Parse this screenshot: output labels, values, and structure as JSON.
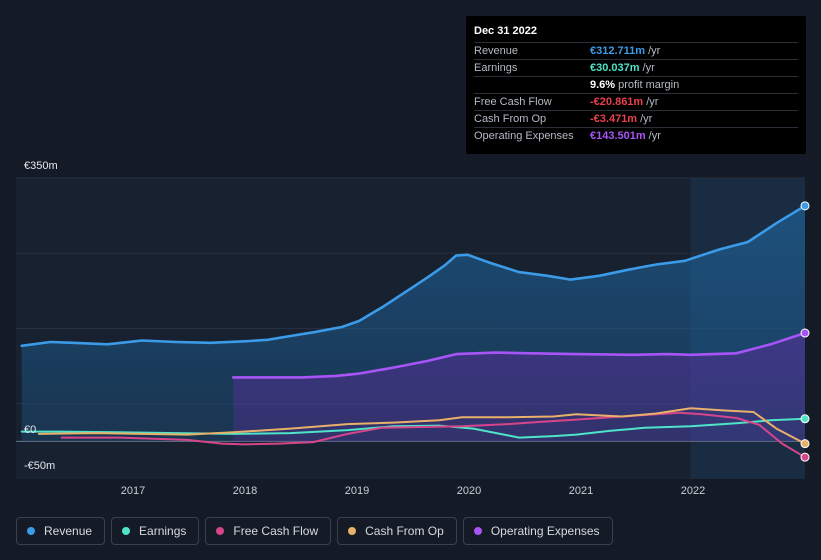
{
  "tooltip": {
    "date": "Dec 31 2022",
    "rows": [
      {
        "label": "Revenue",
        "value": "€312.711m",
        "unit": "/yr",
        "color": "#3b9be8"
      },
      {
        "label": "Earnings",
        "value": "€30.037m",
        "unit": "/yr",
        "color": "#4fe3c8"
      },
      {
        "label": "",
        "value": "9.6%",
        "unit": "profit margin",
        "color": "#ffffff"
      },
      {
        "label": "Free Cash Flow",
        "value": "-€20.861m",
        "unit": "/yr",
        "color": "#e8414b"
      },
      {
        "label": "Cash From Op",
        "value": "-€3.471m",
        "unit": "/yr",
        "color": "#e8414b"
      },
      {
        "label": "Operating Expenses",
        "value": "€143.501m",
        "unit": "/yr",
        "color": "#a855f7"
      }
    ]
  },
  "axis": {
    "y_top_label": "€350m",
    "y_zero_label": "€0",
    "y_bottom_label": "-€50m",
    "x_ticks": [
      "2017",
      "2018",
      "2019",
      "2020",
      "2021",
      "2022"
    ]
  },
  "legend": [
    {
      "label": "Revenue",
      "color": "#3b9be8"
    },
    {
      "label": "Earnings",
      "color": "#4fe3c8"
    },
    {
      "label": "Free Cash Flow",
      "color": "#d6458a"
    },
    {
      "label": "Cash From Op",
      "color": "#e8b06a"
    },
    {
      "label": "Operating Expenses",
      "color": "#a855f7"
    }
  ],
  "chart_data": {
    "type": "line",
    "title": "",
    "xlabel": "",
    "ylabel": "",
    "ylim": [
      -50,
      350
    ],
    "xlim": [
      2016.1,
      2023.0
    ],
    "highlight_from": 2022.0,
    "series": [
      {
        "name": "Revenue",
        "color": "#3b9be8",
        "fill": true,
        "x": [
          2016.15,
          2016.4,
          2016.6,
          2016.9,
          2017.2,
          2017.5,
          2017.8,
          2018.1,
          2018.3,
          2018.5,
          2018.7,
          2018.95,
          2019.1,
          2019.3,
          2019.5,
          2019.7,
          2019.85,
          2019.95,
          2020.05,
          2020.25,
          2020.5,
          2020.75,
          2020.95,
          2021.2,
          2021.45,
          2021.7,
          2021.95,
          2022.25,
          2022.5,
          2022.75,
          2023.0
        ],
        "y": [
          127,
          132,
          131,
          129,
          134,
          132,
          131,
          133,
          135,
          140,
          145,
          152,
          160,
          178,
          198,
          218,
          234,
          247,
          248,
          237,
          225,
          220,
          215,
          220,
          228,
          235,
          240,
          255,
          265,
          290,
          313
        ]
      },
      {
        "name": "Operating Expenses",
        "color": "#a855f7",
        "fill": true,
        "x": [
          2018.0,
          2018.3,
          2018.6,
          2018.9,
          2019.1,
          2019.4,
          2019.7,
          2019.95,
          2020.3,
          2020.6,
          2021.0,
          2021.5,
          2021.8,
          2022.0,
          2022.4,
          2022.7,
          2023.0
        ],
        "y": [
          85,
          85,
          85,
          87,
          90,
          98,
          107,
          116,
          118,
          117,
          116,
          115,
          116,
          115,
          117,
          129,
          144
        ]
      },
      {
        "name": "Earnings",
        "color": "#4fe3c8",
        "fill": false,
        "x": [
          2016.15,
          2016.5,
          2017.0,
          2017.5,
          2018.0,
          2018.5,
          2019.0,
          2019.4,
          2019.8,
          2020.1,
          2020.3,
          2020.5,
          2020.8,
          2021.0,
          2021.3,
          2021.6,
          2022.0,
          2022.4,
          2022.7,
          2023.0
        ],
        "y": [
          13,
          13,
          12,
          11,
          10,
          11,
          15,
          20,
          21,
          17,
          11,
          5,
          7,
          9,
          14,
          18,
          20,
          24,
          28,
          30
        ]
      },
      {
        "name": "Free Cash Flow",
        "color": "#d6458a",
        "fill": false,
        "x": [
          2016.5,
          2017.0,
          2017.6,
          2017.9,
          2018.1,
          2018.4,
          2018.7,
          2019.0,
          2019.3,
          2019.6,
          2020.0,
          2020.4,
          2020.7,
          2021.0,
          2021.3,
          2021.6,
          2021.9,
          2022.1,
          2022.4,
          2022.6,
          2022.8,
          2023.0
        ],
        "y": [
          5,
          5,
          2,
          -3,
          -4,
          -3,
          -1,
          10,
          18,
          19,
          20,
          23,
          26,
          29,
          32,
          35,
          38,
          36,
          31,
          22,
          -3,
          -21
        ]
      },
      {
        "name": "Cash From Op",
        "color": "#e8b06a",
        "fill": false,
        "x": [
          2016.3,
          2016.8,
          2017.2,
          2017.6,
          2018.0,
          2018.5,
          2019.0,
          2019.4,
          2019.8,
          2020.0,
          2020.4,
          2020.8,
          2021.0,
          2021.4,
          2021.7,
          2022.0,
          2022.3,
          2022.55,
          2022.75,
          2023.0
        ],
        "y": [
          10,
          11,
          10,
          9,
          12,
          17,
          23,
          25,
          28,
          32,
          32,
          33,
          36,
          33,
          37,
          44,
          41,
          39,
          17,
          -3
        ]
      }
    ]
  }
}
